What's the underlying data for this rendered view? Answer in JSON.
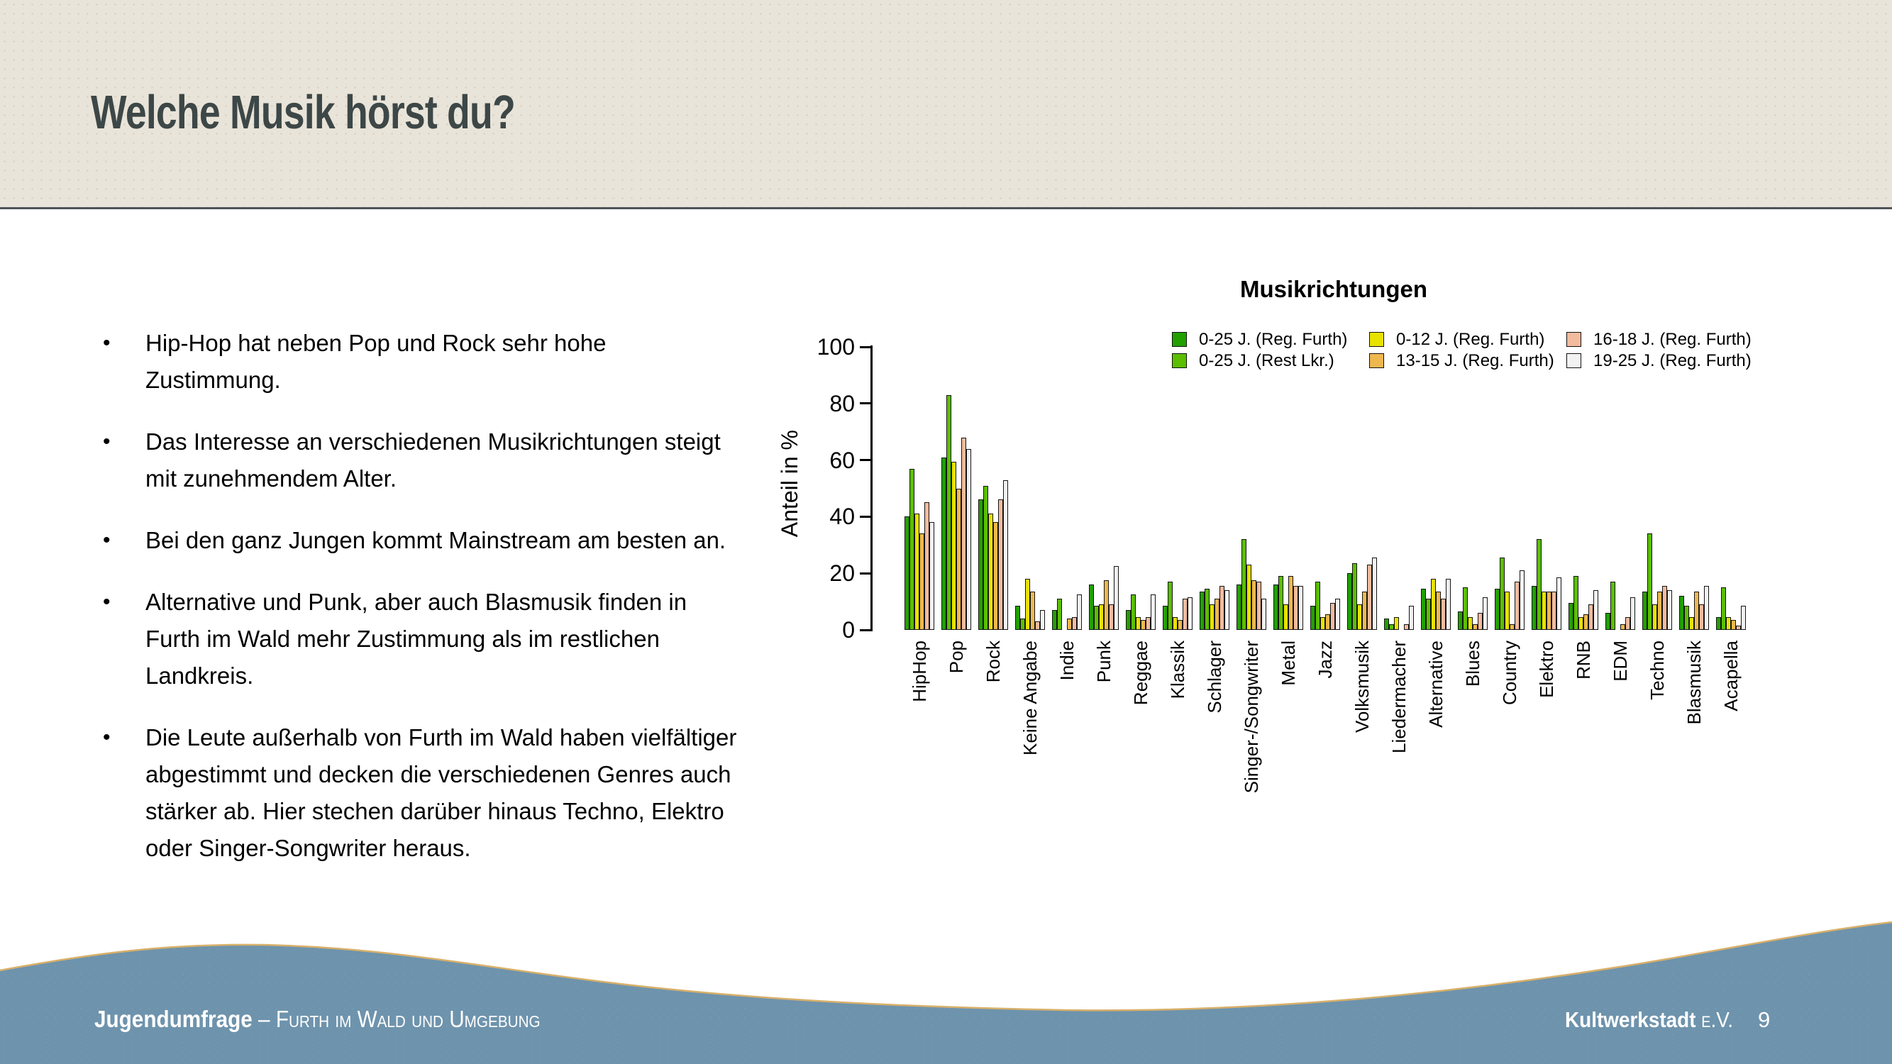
{
  "header": {
    "title": "Welche Musik hörst du?"
  },
  "bullets": [
    "Hip-Hop hat neben Pop und Rock sehr hohe Zustimmung.",
    "Das Interesse an verschiedenen Musikrichtungen steigt mit zunehmendem Alter.",
    "Bei den ganz Jungen kommt Mainstream am besten an.",
    "Alternative und Punk, aber auch Blasmusik finden in Furth im Wald mehr Zustimmung als im restlichen Landkreis.",
    "Die Leute außerhalb von Furth im Wald haben vielfältiger abgestimmt und decken die verschiedenen Genres auch stärker ab. Hier stechen darüber hinaus Techno, Elektro oder Singer-Songwriter heraus."
  ],
  "colors": {
    "header_bg": "#e9e4d9",
    "header_line": "#4d5556",
    "title_color": "#3d4747",
    "footer_bg": "#6e93ac",
    "wave_edge": "#d8b06a",
    "bar_border": "#151515"
  },
  "footer": {
    "left_bold": "Jugendumfrage",
    "left_rest": " – Furth im Wald und Umgebung",
    "right_bold": "Kultwerkstadt",
    "right_rest": " e.V.",
    "page_number": "9"
  },
  "chart_data": {
    "type": "bar",
    "title": "Musikrichtungen",
    "xlabel": "",
    "ylabel": "Anteil in %",
    "ylim": [
      0,
      100
    ],
    "yticks": [
      0,
      20,
      40,
      60,
      80,
      100
    ],
    "grid": false,
    "legend_position": "top-right",
    "categories": [
      "HipHop",
      "Pop",
      "Rock",
      "Keine Angabe",
      "Indie",
      "Punk",
      "Reggae",
      "Klassik",
      "Schlager",
      "Singer-/Songwriter",
      "Metal",
      "Jazz",
      "Volksmusik",
      "Liedermacher",
      "Alternative",
      "Blues",
      "Country",
      "Elektro",
      "RNB",
      "EDM",
      "Techno",
      "Blasmusik",
      "Acapella"
    ],
    "series": [
      {
        "name": "0-25 J. (Reg. Furth)",
        "color": "#22a000",
        "values": [
          40,
          61,
          46,
          8.5,
          7,
          16,
          7,
          8.5,
          13.5,
          16,
          16,
          8.5,
          20,
          4,
          14.5,
          6.5,
          14.5,
          15.5,
          9.5,
          6,
          13.5,
          12,
          4.5
        ]
      },
      {
        "name": "0-25 J. (Rest Lkr.)",
        "color": "#5bbf00",
        "values": [
          57,
          83,
          51,
          4,
          11,
          8.5,
          12.5,
          17,
          14.5,
          32,
          19,
          17,
          23.5,
          2,
          11,
          15,
          25.5,
          32,
          19,
          17,
          34,
          8.5,
          15
        ]
      },
      {
        "name": "0-12 J. (Reg. Furth)",
        "color": "#e8e200",
        "values": [
          41,
          59.5,
          41,
          18,
          0,
          9,
          4.5,
          4.5,
          9,
          23,
          9,
          4.5,
          9,
          4.5,
          18,
          4.5,
          13.5,
          13.5,
          4.5,
          0,
          9,
          4.5,
          4.5
        ]
      },
      {
        "name": "13-15 J. (Reg. Furth)",
        "color": "#eeb84f",
        "values": [
          34,
          50,
          38,
          13.5,
          4,
          17.5,
          3.5,
          3.5,
          11,
          17.5,
          19,
          5.5,
          13.5,
          0,
          13.5,
          2,
          2,
          13.5,
          5.5,
          2,
          13.5,
          13.5,
          3.5
        ]
      },
      {
        "name": "16-18 J. (Reg. Furth)",
        "color": "#f2bb9e",
        "values": [
          45,
          68,
          46,
          3,
          4.5,
          9,
          4.5,
          11,
          15.5,
          17,
          15.5,
          9.5,
          23,
          2,
          11,
          6,
          17,
          13.5,
          9,
          4.5,
          15.5,
          9,
          1.5
        ]
      },
      {
        "name": "19-25 J. (Reg. Furth)",
        "color": "#f2f2f2",
        "values": [
          38,
          64,
          53,
          7,
          12.5,
          22.5,
          12.5,
          11.5,
          14,
          11,
          15.5,
          11,
          25.5,
          8.5,
          18,
          11.5,
          21,
          18.5,
          14,
          11.5,
          14,
          15.5,
          8.5
        ]
      }
    ]
  }
}
